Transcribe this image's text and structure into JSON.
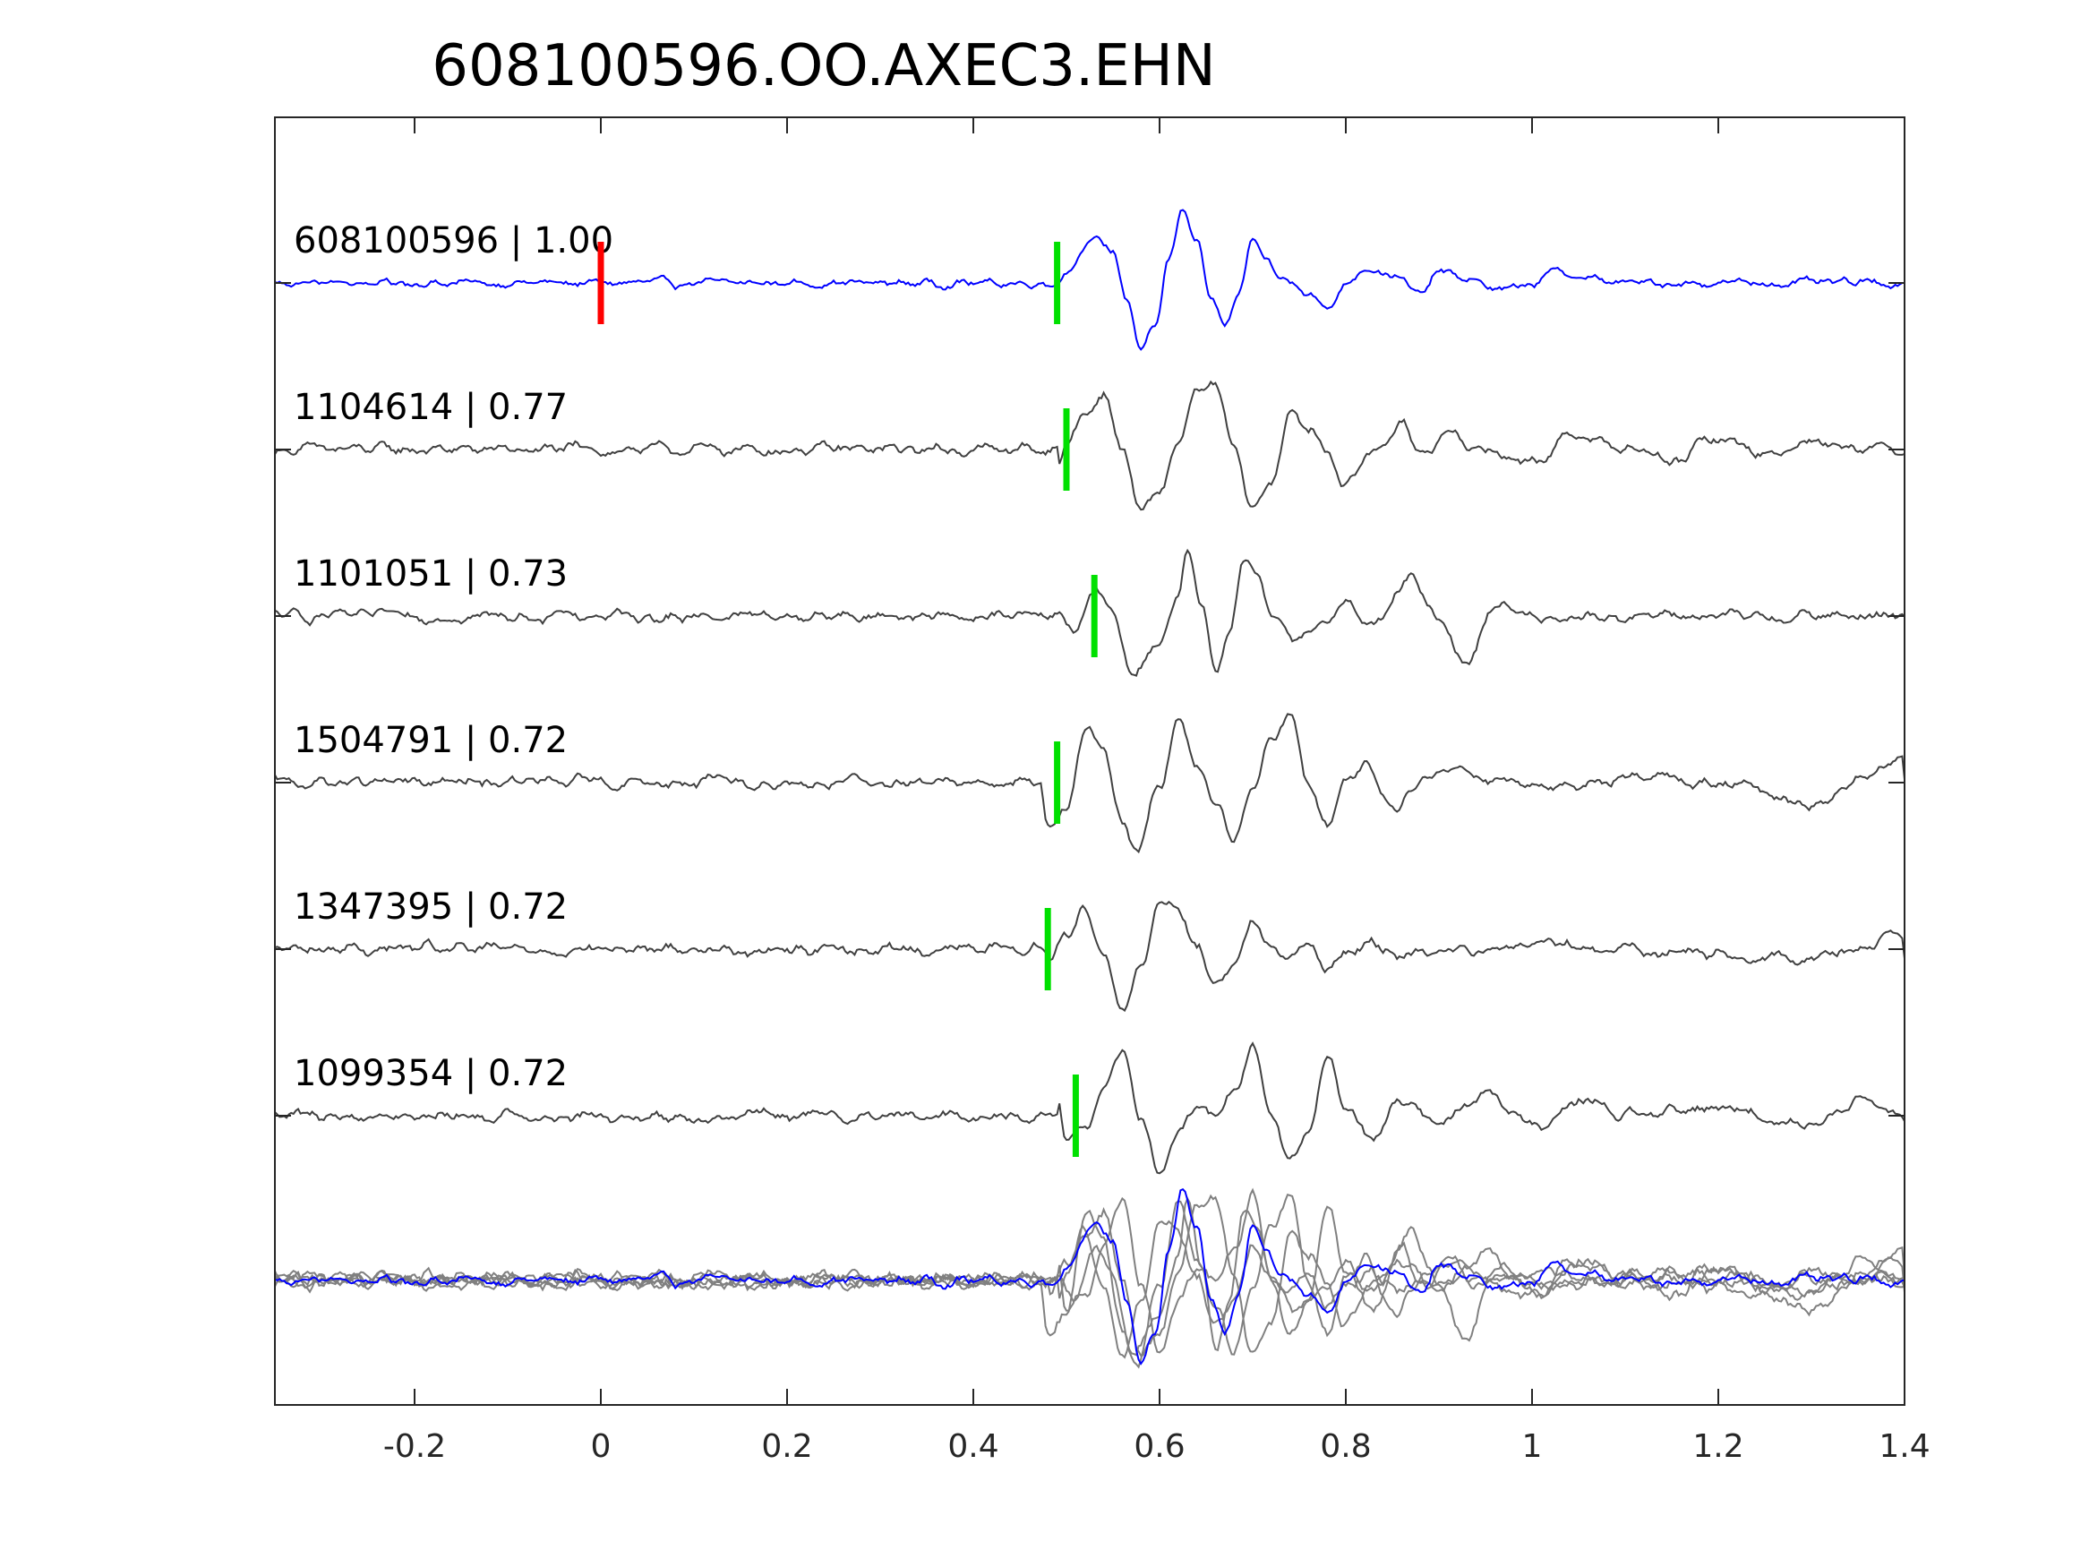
{
  "chart_data": {
    "type": "line",
    "title": "608100596.OO.AXEC3.EHN",
    "xlabel": "",
    "ylabel": "",
    "xlim": [
      -0.35,
      1.4
    ],
    "xticks": [
      -0.2,
      0,
      0.2,
      0.4,
      0.6,
      0.8,
      1.0,
      1.2,
      1.4
    ],
    "xtick_labels": [
      "-0.2",
      "0",
      "0.2",
      "0.4",
      "0.6",
      "0.8",
      "1",
      "1.2",
      "1.4"
    ],
    "grid": false,
    "traces": [
      {
        "label": "608100596 | 1.00",
        "id": "608100596",
        "cc": 1.0,
        "color": "#0000ff",
        "origin_time": 0.0,
        "pick_time": 0.49,
        "waveform": [
          [
            0.49,
            0
          ],
          [
            0.5,
            0.15
          ],
          [
            0.52,
            0.45
          ],
          [
            0.535,
            0.55
          ],
          [
            0.55,
            0.4
          ],
          [
            0.565,
            -0.2
          ],
          [
            0.58,
            -0.85
          ],
          [
            0.595,
            -0.6
          ],
          [
            0.61,
            0.3
          ],
          [
            0.625,
            0.95
          ],
          [
            0.64,
            0.55
          ],
          [
            0.655,
            -0.2
          ],
          [
            0.67,
            -0.55
          ],
          [
            0.685,
            -0.2
          ],
          [
            0.7,
            0.55
          ],
          [
            0.715,
            0.3
          ],
          [
            0.73,
            0.05
          ],
          [
            0.745,
            0.0
          ],
          [
            0.76,
            -0.1
          ],
          [
            0.78,
            -0.35
          ],
          [
            0.8,
            0.0
          ],
          [
            0.82,
            0.2
          ],
          [
            0.85,
            0.1
          ],
          [
            0.88,
            -0.15
          ],
          [
            0.9,
            0.15
          ],
          [
            0.93,
            0.05
          ],
          [
            0.97,
            -0.1
          ],
          [
            1.0,
            0.0
          ],
          [
            1.03,
            0.15
          ],
          [
            1.06,
            0.05
          ],
          [
            1.1,
            0.0
          ],
          [
            1.4,
            0.0
          ]
        ]
      },
      {
        "label": "1104614 | 0.77",
        "id": "1104614",
        "cc": 0.77,
        "color": "#404040",
        "pick_time": 0.5,
        "waveform": [
          [
            0.49,
            -0.25
          ],
          [
            0.5,
            0.1
          ],
          [
            0.52,
            0.45
          ],
          [
            0.54,
            0.7
          ],
          [
            0.56,
            0.0
          ],
          [
            0.58,
            -0.8
          ],
          [
            0.6,
            -0.55
          ],
          [
            0.62,
            0.1
          ],
          [
            0.64,
            0.7
          ],
          [
            0.66,
            0.8
          ],
          [
            0.68,
            0.0
          ],
          [
            0.7,
            -0.75
          ],
          [
            0.72,
            -0.4
          ],
          [
            0.74,
            0.45
          ],
          [
            0.76,
            0.25
          ],
          [
            0.78,
            0.0
          ],
          [
            0.8,
            -0.45
          ],
          [
            0.83,
            0.0
          ],
          [
            0.86,
            0.3
          ],
          [
            0.88,
            0.0
          ],
          [
            0.91,
            0.15
          ],
          [
            0.95,
            0.0
          ],
          [
            1.0,
            -0.15
          ],
          [
            1.05,
            0.2
          ],
          [
            1.1,
            0.0
          ],
          [
            1.15,
            -0.15
          ],
          [
            1.2,
            0.15
          ],
          [
            1.25,
            -0.05
          ],
          [
            1.3,
            0.1
          ],
          [
            1.4,
            0.0
          ]
        ]
      },
      {
        "label": "1101051 | 0.73",
        "id": "1101051",
        "cc": 0.73,
        "color": "#404040",
        "pick_time": 0.53,
        "waveform": [
          [
            0.49,
            0
          ],
          [
            0.51,
            -0.2
          ],
          [
            0.53,
            0.4
          ],
          [
            0.55,
            0.0
          ],
          [
            0.57,
            -0.75
          ],
          [
            0.6,
            -0.4
          ],
          [
            0.62,
            0.3
          ],
          [
            0.63,
            0.85
          ],
          [
            0.645,
            0.2
          ],
          [
            0.66,
            -0.7
          ],
          [
            0.675,
            -0.2
          ],
          [
            0.69,
            0.75
          ],
          [
            0.705,
            0.5
          ],
          [
            0.72,
            -0.05
          ],
          [
            0.75,
            -0.35
          ],
          [
            0.78,
            0.0
          ],
          [
            0.8,
            0.15
          ],
          [
            0.83,
            -0.1
          ],
          [
            0.87,
            0.45
          ],
          [
            0.9,
            0.0
          ],
          [
            0.93,
            -0.6
          ],
          [
            0.96,
            0.15
          ],
          [
            1.0,
            0.0
          ],
          [
            1.1,
            0.0
          ],
          [
            1.4,
            0.0
          ]
        ]
      },
      {
        "label": "1504791 | 0.72",
        "id": "1504791",
        "cc": 0.72,
        "color": "#404040",
        "pick_time": 0.49,
        "waveform": [
          [
            0.47,
            0.1
          ],
          [
            0.48,
            -0.6
          ],
          [
            0.5,
            -0.3
          ],
          [
            0.52,
            0.7
          ],
          [
            0.54,
            0.4
          ],
          [
            0.56,
            -0.55
          ],
          [
            0.575,
            -0.85
          ],
          [
            0.6,
            0.0
          ],
          [
            0.62,
            0.75
          ],
          [
            0.64,
            0.2
          ],
          [
            0.66,
            -0.3
          ],
          [
            0.68,
            -0.7
          ],
          [
            0.7,
            0.0
          ],
          [
            0.72,
            0.55
          ],
          [
            0.74,
            0.85
          ],
          [
            0.76,
            0.0
          ],
          [
            0.78,
            -0.6
          ],
          [
            0.8,
            0.0
          ],
          [
            0.82,
            0.25
          ],
          [
            0.85,
            -0.3
          ],
          [
            0.88,
            0.0
          ],
          [
            0.92,
            0.2
          ],
          [
            0.96,
            0.05
          ],
          [
            1.0,
            0.0
          ],
          [
            1.05,
            -0.1
          ],
          [
            1.1,
            0.1
          ],
          [
            1.2,
            0.0
          ],
          [
            1.3,
            -0.3
          ],
          [
            1.35,
            0.0
          ],
          [
            1.4,
            0.3
          ]
        ]
      },
      {
        "label": "1347395 | 0.72",
        "id": "1347395",
        "cc": 0.72,
        "color": "#404040",
        "pick_time": 0.48,
        "waveform": [
          [
            0.48,
            -0.15
          ],
          [
            0.5,
            0.2
          ],
          [
            0.52,
            0.5
          ],
          [
            0.54,
            0.0
          ],
          [
            0.56,
            -0.8
          ],
          [
            0.58,
            -0.2
          ],
          [
            0.6,
            0.6
          ],
          [
            0.62,
            0.55
          ],
          [
            0.64,
            0.0
          ],
          [
            0.66,
            -0.4
          ],
          [
            0.68,
            -0.15
          ],
          [
            0.7,
            0.35
          ],
          [
            0.72,
            0.05
          ],
          [
            0.74,
            -0.1
          ],
          [
            0.76,
            0.05
          ],
          [
            0.78,
            -0.3
          ],
          [
            0.8,
            0.0
          ],
          [
            0.82,
            0.05
          ],
          [
            0.86,
            -0.05
          ],
          [
            0.9,
            0.0
          ],
          [
            1.0,
            0.05
          ],
          [
            1.1,
            0.0
          ],
          [
            1.3,
            -0.1
          ],
          [
            1.35,
            0.0
          ],
          [
            1.4,
            0.25
          ]
        ]
      },
      {
        "label": "1099354 | 0.72",
        "id": "1099354",
        "cc": 0.72,
        "color": "#404040",
        "pick_time": 0.51,
        "waveform": [
          [
            0.49,
            0.25
          ],
          [
            0.5,
            -0.3
          ],
          [
            0.52,
            -0.2
          ],
          [
            0.54,
            0.3
          ],
          [
            0.56,
            0.9
          ],
          [
            0.58,
            0.0
          ],
          [
            0.6,
            -0.7
          ],
          [
            0.62,
            -0.2
          ],
          [
            0.64,
            0.15
          ],
          [
            0.66,
            0.0
          ],
          [
            0.68,
            0.3
          ],
          [
            0.7,
            0.9
          ],
          [
            0.72,
            0.0
          ],
          [
            0.74,
            -0.6
          ],
          [
            0.76,
            -0.2
          ],
          [
            0.78,
            0.7
          ],
          [
            0.8,
            0.1
          ],
          [
            0.83,
            -0.3
          ],
          [
            0.86,
            0.25
          ],
          [
            0.9,
            -0.1
          ],
          [
            0.95,
            0.3
          ],
          [
            1.0,
            -0.15
          ],
          [
            1.05,
            0.2
          ],
          [
            1.1,
            0.0
          ],
          [
            1.2,
            0.1
          ],
          [
            1.3,
            -0.1
          ],
          [
            1.35,
            0.15
          ],
          [
            1.4,
            0.0
          ]
        ]
      }
    ],
    "overlay": {
      "description_color_main": "#0000ff",
      "description_color_others": "#808080"
    },
    "markers": {
      "origin_color": "#ff0000",
      "pick_color": "#00e000"
    }
  }
}
